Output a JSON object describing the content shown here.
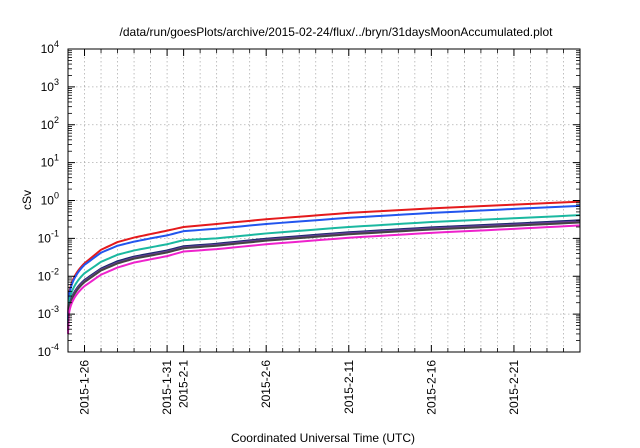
{
  "chart_data": {
    "type": "line",
    "title": "/data/run/goesPlots/archive/2015-02-24/flux/../bryn/31daysMoonAccumulated.plot",
    "xlabel": "Coordinated Universal Time (UTC)",
    "ylabel": "cSv",
    "y_scale": "log",
    "ylim": [
      0.0001,
      10000
    ],
    "xlim": [
      "2015-01-25",
      "2015-02-25"
    ],
    "grid": true,
    "y_ticks": [
      {
        "value": 0.0001,
        "base": "10",
        "exp": "-4"
      },
      {
        "value": 0.001,
        "base": "10",
        "exp": "-3"
      },
      {
        "value": 0.01,
        "base": "10",
        "exp": "-2"
      },
      {
        "value": 0.1,
        "base": "10",
        "exp": "-1"
      },
      {
        "value": 1,
        "base": "10",
        "exp": "0"
      },
      {
        "value": 10,
        "base": "10",
        "exp": "1"
      },
      {
        "value": 100,
        "base": "10",
        "exp": "2"
      },
      {
        "value": 1000,
        "base": "10",
        "exp": "3"
      },
      {
        "value": 10000,
        "base": "10",
        "exp": "4"
      }
    ],
    "x_ticks": [
      {
        "date": "2015-01-26",
        "label": "2015-1-26"
      },
      {
        "date": "2015-01-31",
        "label": "2015-1-31"
      },
      {
        "date": "2015-02-01",
        "label": "2015-2-1"
      },
      {
        "date": "2015-02-06",
        "label": "2015-2-6"
      },
      {
        "date": "2015-02-11",
        "label": "2015-2-11"
      },
      {
        "date": "2015-02-16",
        "label": "2015-2-16"
      },
      {
        "date": "2015-02-21",
        "label": "2015-2-21"
      }
    ],
    "x_minor_ticks": [
      "2015-01-27",
      "2015-01-28",
      "2015-01-29",
      "2015-01-30",
      "2015-02-02",
      "2015-02-03",
      "2015-02-04",
      "2015-02-05",
      "2015-02-07",
      "2015-02-08",
      "2015-02-09",
      "2015-02-10",
      "2015-02-12",
      "2015-02-13",
      "2015-02-14",
      "2015-02-15",
      "2015-02-17",
      "2015-02-18",
      "2015-02-19",
      "2015-02-20",
      "2015-02-22",
      "2015-02-23",
      "2015-02-24"
    ],
    "x": [
      "2015-01-25",
      "2015-01-26",
      "2015-01-27",
      "2015-01-28",
      "2015-01-29",
      "2015-01-30",
      "2015-01-31",
      "2015-02-01",
      "2015-02-03",
      "2015-02-06",
      "2015-02-11",
      "2015-02-16",
      "2015-02-21",
      "2015-02-25"
    ],
    "series": [
      {
        "color": "#e41a1c",
        "values": [
          0.0008,
          0.022,
          0.05,
          0.08,
          0.105,
          0.13,
          0.16,
          0.2,
          0.24,
          0.32,
          0.47,
          0.62,
          0.78,
          0.93
        ]
      },
      {
        "color": "#2255ee",
        "values": [
          0.0007,
          0.02,
          0.042,
          0.064,
          0.082,
          0.1,
          0.12,
          0.155,
          0.18,
          0.24,
          0.35,
          0.47,
          0.6,
          0.72
        ]
      },
      {
        "color": "#1ab8a0",
        "values": [
          0.0005,
          0.012,
          0.024,
          0.037,
          0.048,
          0.058,
          0.07,
          0.09,
          0.1,
          0.135,
          0.2,
          0.27,
          0.34,
          0.41
        ]
      },
      {
        "color": "#1a2a6c",
        "values": [
          0.0004,
          0.008,
          0.016,
          0.025,
          0.033,
          0.04,
          0.048,
          0.062,
          0.072,
          0.098,
          0.145,
          0.195,
          0.245,
          0.3
        ]
      },
      {
        "color": "#6a3d9a",
        "values": [
          0.00038,
          0.0075,
          0.015,
          0.023,
          0.031,
          0.037,
          0.045,
          0.058,
          0.068,
          0.092,
          0.137,
          0.183,
          0.23,
          0.28
        ]
      },
      {
        "color": "#444444",
        "values": [
          0.00036,
          0.007,
          0.0142,
          0.0218,
          0.0292,
          0.035,
          0.0425,
          0.055,
          0.064,
          0.087,
          0.128,
          0.172,
          0.216,
          0.262
        ]
      },
      {
        "color": "#ee22cc",
        "values": [
          0.0003,
          0.0055,
          0.011,
          0.017,
          0.023,
          0.028,
          0.034,
          0.045,
          0.052,
          0.07,
          0.104,
          0.14,
          0.178,
          0.22
        ]
      }
    ]
  }
}
